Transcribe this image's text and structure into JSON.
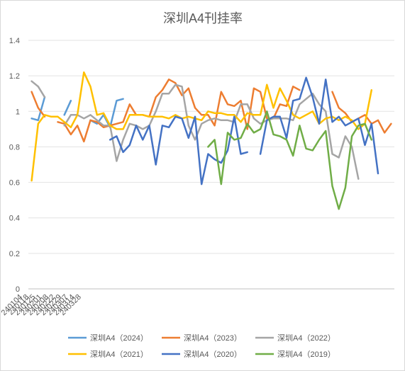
{
  "chart_data": {
    "type": "line",
    "title": "深圳A4刊挂率",
    "xlabel": "",
    "ylabel": "",
    "ylim": [
      0,
      1.4
    ],
    "yticks": [
      "0",
      "0.2",
      "0.4",
      "0.6",
      "0.8",
      "1",
      "1.2",
      "1.4"
    ],
    "x_tick_labels": [
      "240104",
      "240118",
      "240125",
      "240201",
      "240208",
      "240222",
      "240229",
      "240307",
      "240314",
      "240328"
    ],
    "grid": true,
    "legend_position": "bottom",
    "series": [
      {
        "name": "深圳A4（2024）",
        "color": "#5b9bd5",
        "values": [
          0.96,
          0.95,
          1.08,
          null,
          null,
          0.98,
          1.06,
          null,
          null,
          0.95,
          0.93,
          0.98,
          0.91,
          1.06,
          1.07
        ]
      },
      {
        "name": "深圳A4（2023）",
        "color": "#ed7d31",
        "values": [
          1.11,
          1.02,
          0.97,
          null,
          0.94,
          0.93,
          0.87,
          0.92,
          0.83,
          0.95,
          0.94,
          0.91,
          0.92,
          0.93,
          0.94,
          1.04,
          0.98,
          0.98,
          0.97,
          1.08,
          1.12,
          1.18,
          1.16,
          1.09,
          1.13,
          1.02,
          0.98,
          0.98,
          0.92,
          1.11,
          1.04,
          1.03,
          1.06,
          0.9,
          1.13,
          1.11,
          0.96,
          0.96,
          1.04,
          1.03,
          1.14,
          1.12,
          null,
          null,
          null,
          null,
          1.11,
          1.02,
          0.99,
          0.94,
          0.96,
          0.98,
          0.93,
          0.95,
          0.88,
          0.93
        ]
      },
      {
        "name": "深圳A4（2022）",
        "color": "#a5a5a5",
        "values": [
          1.17,
          1.14,
          1.08,
          null,
          null,
          0.92,
          0.98,
          0.98,
          0.96,
          0.98,
          0.95,
          0.92,
          0.92,
          0.72,
          0.84,
          0.93,
          0.92,
          0.9,
          0.92,
          1.0,
          1.1,
          1.1,
          1.15,
          1.14,
          0.92,
          0.84,
          0.93,
          0.95,
          0.96,
          0.95,
          0.95,
          0.94,
          1.04,
          1.04,
          0.96,
          0.93,
          0.95,
          0.96,
          0.96,
          0.96,
          0.95,
          1.04,
          1.07,
          1.1,
          1.04,
          1.0,
          0.76,
          0.74,
          0.86,
          0.8,
          0.62
        ]
      },
      {
        "name": "深圳A4（2021）",
        "color": "#ffc000",
        "values": [
          0.61,
          0.93,
          0.98,
          0.97,
          0.97,
          0.94,
          0.91,
          0.98,
          1.22,
          1.14,
          0.98,
          0.99,
          0.92,
          0.9,
          0.9,
          0.98,
          0.98,
          0.98,
          0.97,
          0.97,
          0.97,
          0.96,
          0.98,
          0.96,
          0.97,
          0.96,
          0.95,
          1.0,
          0.99,
          0.99,
          0.98,
          0.98,
          0.94,
          0.99,
          0.98,
          0.98,
          1.15,
          1.02,
          1.13,
          1.06,
          0.98,
          0.96,
          0.98,
          1.0,
          0.93,
          0.96,
          0.97,
          0.95,
          0.97,
          0.95,
          0.9,
          0.93,
          1.12
        ]
      },
      {
        "name": "深圳A4（2020）",
        "color": "#4472c4",
        "values": [
          null,
          null,
          null,
          null,
          null,
          null,
          null,
          null,
          null,
          null,
          null,
          null,
          0.84,
          0.86,
          0.77,
          0.81,
          0.92,
          0.84,
          0.92,
          0.7,
          0.92,
          0.91,
          0.97,
          0.96,
          0.85,
          0.97,
          0.59,
          0.76,
          0.73,
          0.71,
          0.78,
          0.97,
          0.76,
          0.77,
          null,
          0.76,
          0.95,
          0.97,
          0.97,
          0.85,
          1.06,
          1.07,
          1.19,
          1.08,
          0.93,
          1.18,
          0.94,
          0.97,
          0.92,
          0.94,
          0.96,
          0.81,
          0.93,
          0.65
        ]
      },
      {
        "name": "深圳A4（2019）",
        "color": "#70ad47",
        "values": [
          null,
          null,
          null,
          null,
          null,
          null,
          null,
          null,
          null,
          null,
          null,
          null,
          null,
          null,
          null,
          null,
          null,
          null,
          null,
          null,
          null,
          null,
          null,
          null,
          null,
          null,
          null,
          0.8,
          0.84,
          0.59,
          0.88,
          0.84,
          0.85,
          0.93,
          0.88,
          0.9,
          1.0,
          0.87,
          0.86,
          0.84,
          0.75,
          0.92,
          0.79,
          0.78,
          0.84,
          0.89,
          0.58,
          0.45,
          0.57,
          0.86,
          0.92,
          0.93,
          0.84
        ]
      }
    ]
  }
}
